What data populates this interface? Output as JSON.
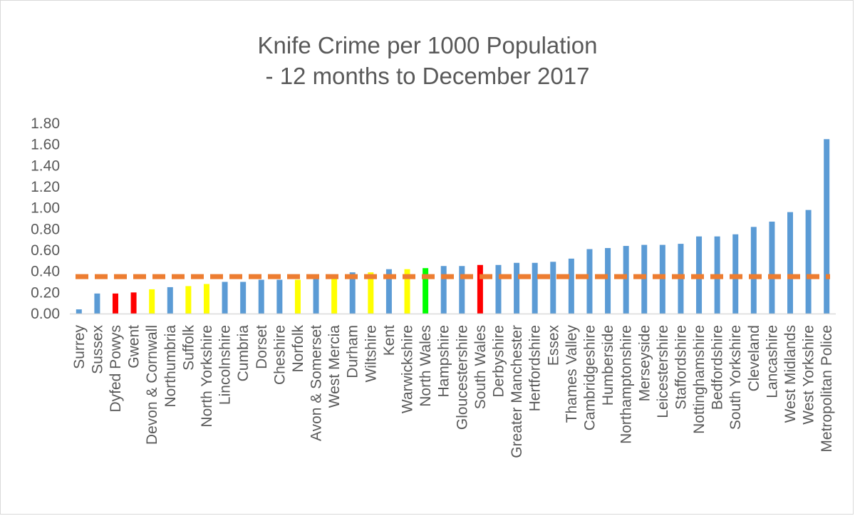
{
  "chart_data": {
    "type": "bar",
    "title_lines": [
      "Knife Crime per 1000 Population",
      "- 12 months to December 2017"
    ],
    "xlabel": "",
    "ylabel": "",
    "ylim": [
      0,
      1.8
    ],
    "y_ticks": [
      "0.00",
      "0.20",
      "0.40",
      "0.60",
      "0.80",
      "1.00",
      "1.20",
      "1.40",
      "1.60",
      "1.80"
    ],
    "grid": false,
    "legend": "none",
    "categories": [
      "Surrey",
      "Sussex",
      "Dyfed Powys",
      "Gwent",
      "Devon & Cornwall",
      "Northumbria",
      "Suffolk",
      "North Yorkshire",
      "Lincolnshire",
      "Cumbria",
      "Dorset",
      "Cheshire",
      "Norfolk",
      "Avon & Somerset",
      "West Mercia",
      "Durham",
      "Wiltshire",
      "Kent",
      "Warwickshire",
      "North Wales",
      "Hampshire",
      "Gloucestershire",
      "South Wales",
      "Derbyshire",
      "Greater Manchester",
      "Hertfordshire",
      "Essex",
      "Thames Valley",
      "Cambridgeshire",
      "Humberside",
      "Northamptonshire",
      "Merseyside",
      "Leicestershire",
      "Staffordshire",
      "Nottinghamshire",
      "Bedfordshire",
      "South Yorkshire",
      "Cleveland",
      "Lancashire",
      "West Midlands",
      "West Yorkshire",
      "Metropolitan Police"
    ],
    "values": [
      0.04,
      0.19,
      0.19,
      0.2,
      0.23,
      0.25,
      0.26,
      0.28,
      0.3,
      0.3,
      0.32,
      0.32,
      0.32,
      0.33,
      0.34,
      0.39,
      0.39,
      0.42,
      0.42,
      0.43,
      0.45,
      0.45,
      0.46,
      0.46,
      0.48,
      0.48,
      0.49,
      0.52,
      0.61,
      0.62,
      0.64,
      0.65,
      0.65,
      0.66,
      0.73,
      0.73,
      0.75,
      0.82,
      0.87,
      0.96,
      0.98,
      1.65
    ],
    "bar_color_keys": [
      "blue",
      "blue",
      "red",
      "red",
      "yellow",
      "blue",
      "yellow",
      "yellow",
      "blue",
      "blue",
      "blue",
      "blue",
      "yellow",
      "blue",
      "yellow",
      "blue",
      "yellow",
      "blue",
      "yellow",
      "green",
      "blue",
      "blue",
      "red",
      "blue",
      "blue",
      "blue",
      "blue",
      "blue",
      "blue",
      "blue",
      "blue",
      "blue",
      "blue",
      "blue",
      "blue",
      "blue",
      "blue",
      "blue",
      "blue",
      "blue",
      "blue",
      "blue"
    ],
    "colors": {
      "blue": "#5b9bd5",
      "red": "#ff0000",
      "yellow": "#ffff00",
      "green": "#00ff00",
      "reference_line": "#ed7d31",
      "text": "#595959",
      "axis": "#d9d9d9"
    },
    "reference_line": {
      "value": 0.35,
      "style": "dashed"
    }
  }
}
